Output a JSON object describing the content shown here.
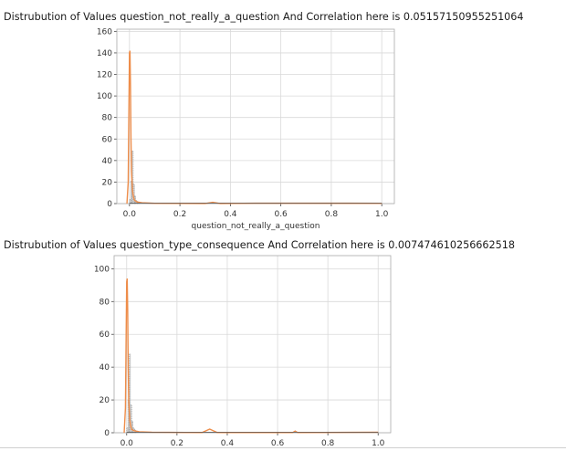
{
  "chart_data": [
    {
      "type": "histogram",
      "title": "Distrubution of Values question_not_really_a_question  And Correlation here is 0.05157150955251064",
      "xlabel": "question_not_really_a_question",
      "ylabel": "",
      "xlim": [
        -0.05,
        1.05
      ],
      "ylim": [
        0,
        162
      ],
      "xticks": [
        "0.0",
        "0.2",
        "0.4",
        "0.6",
        "0.8",
        "1.0"
      ],
      "yticks": [
        "0",
        "20",
        "40",
        "60",
        "80",
        "100",
        "120",
        "140",
        "160"
      ],
      "grid": true,
      "hist_bins": [
        0,
        0.005,
        0.01,
        0.015,
        0.02,
        0.025,
        0.03,
        0.035,
        0.04
      ],
      "hist_values": [
        4,
        21,
        49,
        18,
        7,
        3,
        2,
        1
      ],
      "kde_x": [
        -0.01,
        -0.005,
        0,
        0.002,
        0.004,
        0.006,
        0.008,
        0.012,
        0.016,
        0.02,
        0.03,
        0.05,
        0.1,
        0.3,
        0.33,
        0.36,
        0.5,
        1.0
      ],
      "kde_y": [
        0,
        20,
        140,
        142,
        110,
        60,
        30,
        12,
        6,
        3,
        1.5,
        0.8,
        0.3,
        0.1,
        1.2,
        0.1,
        0.4,
        0.3
      ],
      "colors": {
        "kde": "#ee8d4a",
        "hist": "#b8b8b8",
        "hist_edge": "#888888",
        "rug": "#555555",
        "grid": "#d9d9d9",
        "axis": "#aaaaaa"
      }
    },
    {
      "type": "histogram",
      "title": "Distrubution of Values question_type_consequence  And Correlation here is 0.007474610256662518",
      "xlabel": "",
      "ylabel": "",
      "xlim": [
        -0.05,
        1.05
      ],
      "ylim": [
        0,
        108
      ],
      "xticks": [
        "0.0",
        "0.2",
        "0.4",
        "0.6",
        "0.8",
        "1.0"
      ],
      "yticks": [
        "0",
        "20",
        "40",
        "60",
        "80",
        "100"
      ],
      "grid": true,
      "hist_bins": [
        0,
        0.005,
        0.01,
        0.015,
        0.02,
        0.025,
        0.03,
        0.035,
        0.04
      ],
      "hist_values": [
        3,
        20,
        48,
        17,
        7,
        3,
        2,
        1
      ],
      "kde_x": [
        -0.01,
        -0.005,
        0,
        0.002,
        0.004,
        0.006,
        0.008,
        0.012,
        0.016,
        0.02,
        0.03,
        0.05,
        0.1,
        0.3,
        0.33,
        0.36,
        0.66,
        0.67,
        0.68,
        1.0
      ],
      "kde_y": [
        0,
        15,
        92,
        94,
        75,
        40,
        20,
        8,
        4,
        2,
        1.2,
        0.6,
        0.3,
        0.1,
        2.2,
        0.1,
        0.1,
        1.0,
        0.1,
        0.3
      ],
      "colors": {
        "kde": "#ee8d4a",
        "hist": "#b8b8b8",
        "hist_edge": "#888888",
        "rug": "#555555",
        "grid": "#d9d9d9",
        "axis": "#aaaaaa"
      }
    }
  ]
}
